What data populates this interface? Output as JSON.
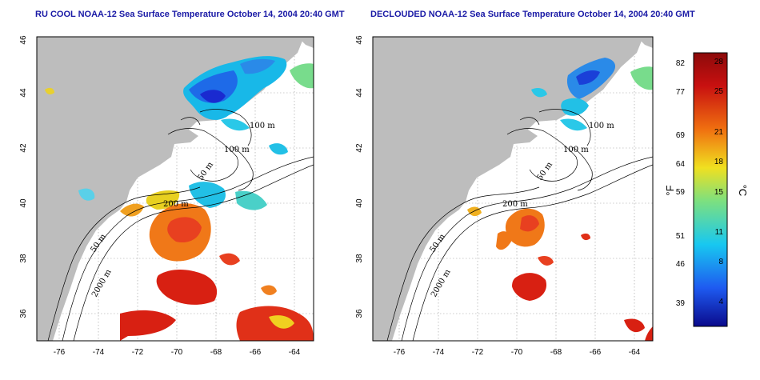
{
  "maps": [
    {
      "title": "RU COOL NOAA-12 Sea Surface Temperature October 14, 2004 20:40 GMT",
      "variant": "cloudy",
      "lat_labels": [
        "46",
        "44",
        "42",
        "40",
        "38",
        "36"
      ],
      "lon_labels": [
        "-76",
        "-74",
        "-72",
        "-70",
        "-68",
        "-66",
        "-64"
      ],
      "contour_labels": [
        "100 m",
        "100 m",
        "50 m",
        "200 m",
        "50 m",
        "2000 m"
      ]
    },
    {
      "title": "DECLOUDED NOAA-12 Sea Surface Temperature October 14, 2004 20:40 GMT",
      "variant": "declouded",
      "lat_labels": [
        "46",
        "44",
        "42",
        "40",
        "38",
        "36"
      ],
      "lon_labels": [
        "-76",
        "-74",
        "-72",
        "-70",
        "-68",
        "-66",
        "-64"
      ],
      "contour_labels": [
        "100 m",
        "100 m",
        "50 m",
        "200 m",
        "50 m",
        "2000 m"
      ]
    }
  ],
  "colorbar": {
    "unit_f": "°F",
    "unit_c": "°C",
    "fahrenheit_ticks": [
      "82",
      "77",
      "69",
      "64",
      "59",
      "51",
      "46",
      "39"
    ],
    "celsius_ticks": [
      "28",
      "25",
      "21",
      "18",
      "15",
      "11",
      "8",
      "4"
    ],
    "colors": [
      "#0a0a8c",
      "#1e5af0",
      "#18c8f0",
      "#7ee07e",
      "#f0e020",
      "#f07010",
      "#c81010",
      "#8c0a0a"
    ]
  }
}
